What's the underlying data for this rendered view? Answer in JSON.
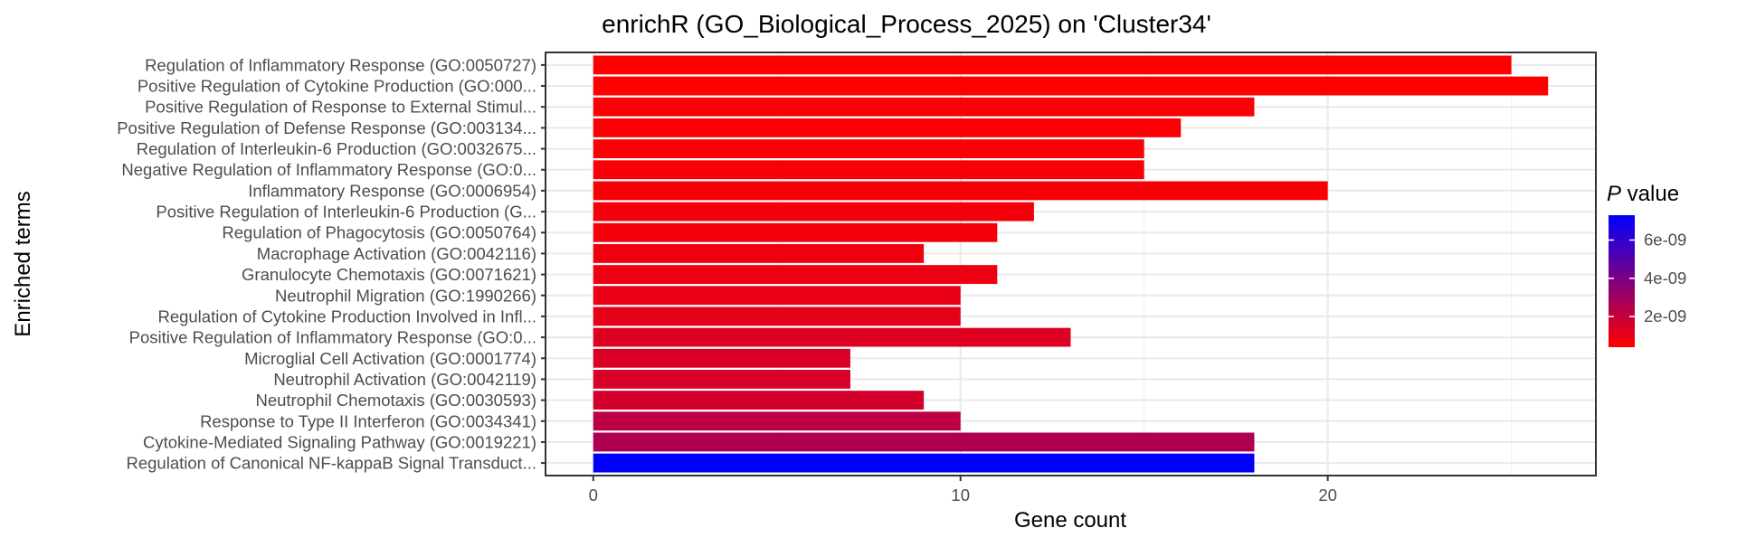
{
  "chart_data": {
    "type": "bar",
    "orientation": "horizontal",
    "title": "enrichR (GO_Biological_Process_2025) on 'Cluster34'",
    "xlabel": "Gene count",
    "ylabel": "Enriched terms",
    "xlim": [
      -1.3,
      27.3
    ],
    "xticks": [
      0,
      10,
      20
    ],
    "grid": true,
    "legend_position": "right",
    "legend": {
      "title_italic": "P",
      "title_rest": " value",
      "ticks": [
        {
          "label": "2e-09",
          "value": 2e-09
        },
        {
          "label": "4e-09",
          "value": 4e-09
        },
        {
          "label": "6e-09",
          "value": 6e-09
        }
      ],
      "range": [
        4e-10,
        7.3e-09
      ],
      "color_low": "#ff0000",
      "color_high": "#0000ff"
    },
    "categories": [
      "Regulation of Inflammatory Response (GO:0050727)",
      "Positive Regulation of Cytokine Production (GO:000...",
      "Positive Regulation of Response to External Stimul...",
      "Positive Regulation of Defense Response (GO:003134...",
      "Regulation of Interleukin-6 Production (GO:0032675...",
      "Negative Regulation of Inflammatory Response (GO:0...",
      "Inflammatory Response (GO:0006954)",
      "Positive Regulation of Interleukin-6 Production (G...",
      "Regulation of Phagocytosis (GO:0050764)",
      "Macrophage Activation (GO:0042116)",
      "Granulocyte Chemotaxis (GO:0071621)",
      "Neutrophil Migration (GO:1990266)",
      "Regulation of Cytokine Production Involved in Infl...",
      "Positive Regulation of Inflammatory Response (GO:0...",
      "Microglial Cell Activation (GO:0001774)",
      "Neutrophil Activation (GO:0042119)",
      "Neutrophil Chemotaxis (GO:0030593)",
      "Response to Type II Interferon (GO:0034341)",
      "Cytokine-Mediated Signaling Pathway (GO:0019221)",
      "Regulation of Canonical NF-kappaB Signal Transduct..."
    ],
    "values": [
      25,
      26,
      18,
      16,
      15,
      15,
      20,
      12,
      11,
      9,
      11,
      10,
      10,
      13,
      7,
      7,
      9,
      10,
      18,
      18
    ],
    "p_values": [
      4e-10,
      4e-10,
      5e-10,
      5e-10,
      5e-10,
      6e-10,
      6e-10,
      7e-10,
      7e-10,
      8e-10,
      9e-10,
      1e-09,
      1.1e-09,
      1.3e-09,
      1.4e-09,
      1.5e-09,
      1.6e-09,
      2.2e-09,
      2.6e-09,
      7.3e-09
    ]
  }
}
